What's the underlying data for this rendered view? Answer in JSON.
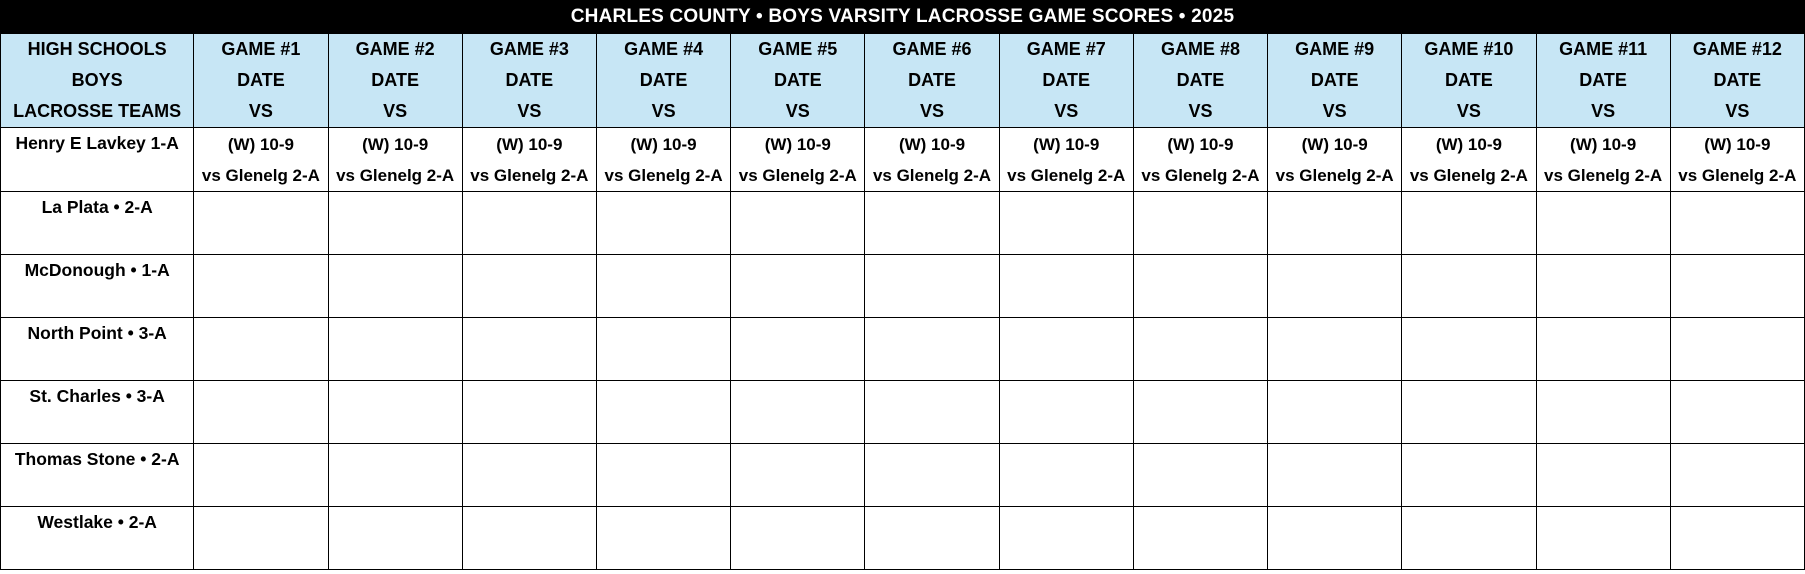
{
  "title": "CHARLES COUNTY • BOYS VARSITY LACROSSE GAME SCORES • 2025",
  "colors": {
    "title_bg": "#000000",
    "title_text": "#ffffff",
    "header_bg": "#c7e6f5",
    "grid": "#000000"
  },
  "header": {
    "team_col": [
      "HIGH SCHOOLS",
      "BOYS",
      "LACROSSE TEAMS"
    ],
    "games": [
      {
        "game": "GAME #1",
        "date": "DATE",
        "vs": "VS"
      },
      {
        "game": "GAME #2",
        "date": "DATE",
        "vs": "VS"
      },
      {
        "game": "GAME #3",
        "date": "DATE",
        "vs": "VS"
      },
      {
        "game": "GAME #4",
        "date": "DATE",
        "vs": "VS"
      },
      {
        "game": "GAME #5",
        "date": "DATE",
        "vs": "VS"
      },
      {
        "game": "GAME #6",
        "date": "DATE",
        "vs": "VS"
      },
      {
        "game": "GAME #7",
        "date": "DATE",
        "vs": "VS"
      },
      {
        "game": "GAME #8",
        "date": "DATE",
        "vs": "VS"
      },
      {
        "game": "GAME #9",
        "date": "DATE",
        "vs": "VS"
      },
      {
        "game": "GAME #10",
        "date": "DATE",
        "vs": "VS"
      },
      {
        "game": "GAME #11",
        "date": "DATE",
        "vs": "VS"
      },
      {
        "game": "GAME #12",
        "date": "DATE",
        "vs": "VS"
      }
    ]
  },
  "rows": [
    {
      "team": "Henry E Lavkey  1-A",
      "games": [
        {
          "score": "(W) 10-9",
          "opponent": "vs Glenelg 2-A"
        },
        {
          "score": "(W) 10-9",
          "opponent": "vs Glenelg 2-A"
        },
        {
          "score": "(W) 10-9",
          "opponent": "vs Glenelg 2-A"
        },
        {
          "score": "(W) 10-9",
          "opponent": "vs Glenelg 2-A"
        },
        {
          "score": "(W) 10-9",
          "opponent": "vs Glenelg 2-A"
        },
        {
          "score": "(W) 10-9",
          "opponent": "vs Glenelg 2-A"
        },
        {
          "score": "(W) 10-9",
          "opponent": "vs Glenelg 2-A"
        },
        {
          "score": "(W) 10-9",
          "opponent": "vs Glenelg 2-A"
        },
        {
          "score": "(W) 10-9",
          "opponent": "vs Glenelg 2-A"
        },
        {
          "score": "(W) 10-9",
          "opponent": "vs Glenelg 2-A"
        },
        {
          "score": "(W) 10-9",
          "opponent": "vs Glenelg 2-A"
        },
        {
          "score": "(W) 10-9",
          "opponent": "vs Glenelg 2-A"
        }
      ]
    },
    {
      "team": "La Plata • 2-A",
      "games": []
    },
    {
      "team": "McDonough • 1-A",
      "games": []
    },
    {
      "team": "North Point • 3-A",
      "games": []
    },
    {
      "team": "St. Charles • 3-A",
      "games": []
    },
    {
      "team": "Thomas Stone • 2-A",
      "games": []
    },
    {
      "team": "Westlake • 2-A",
      "games": []
    }
  ]
}
